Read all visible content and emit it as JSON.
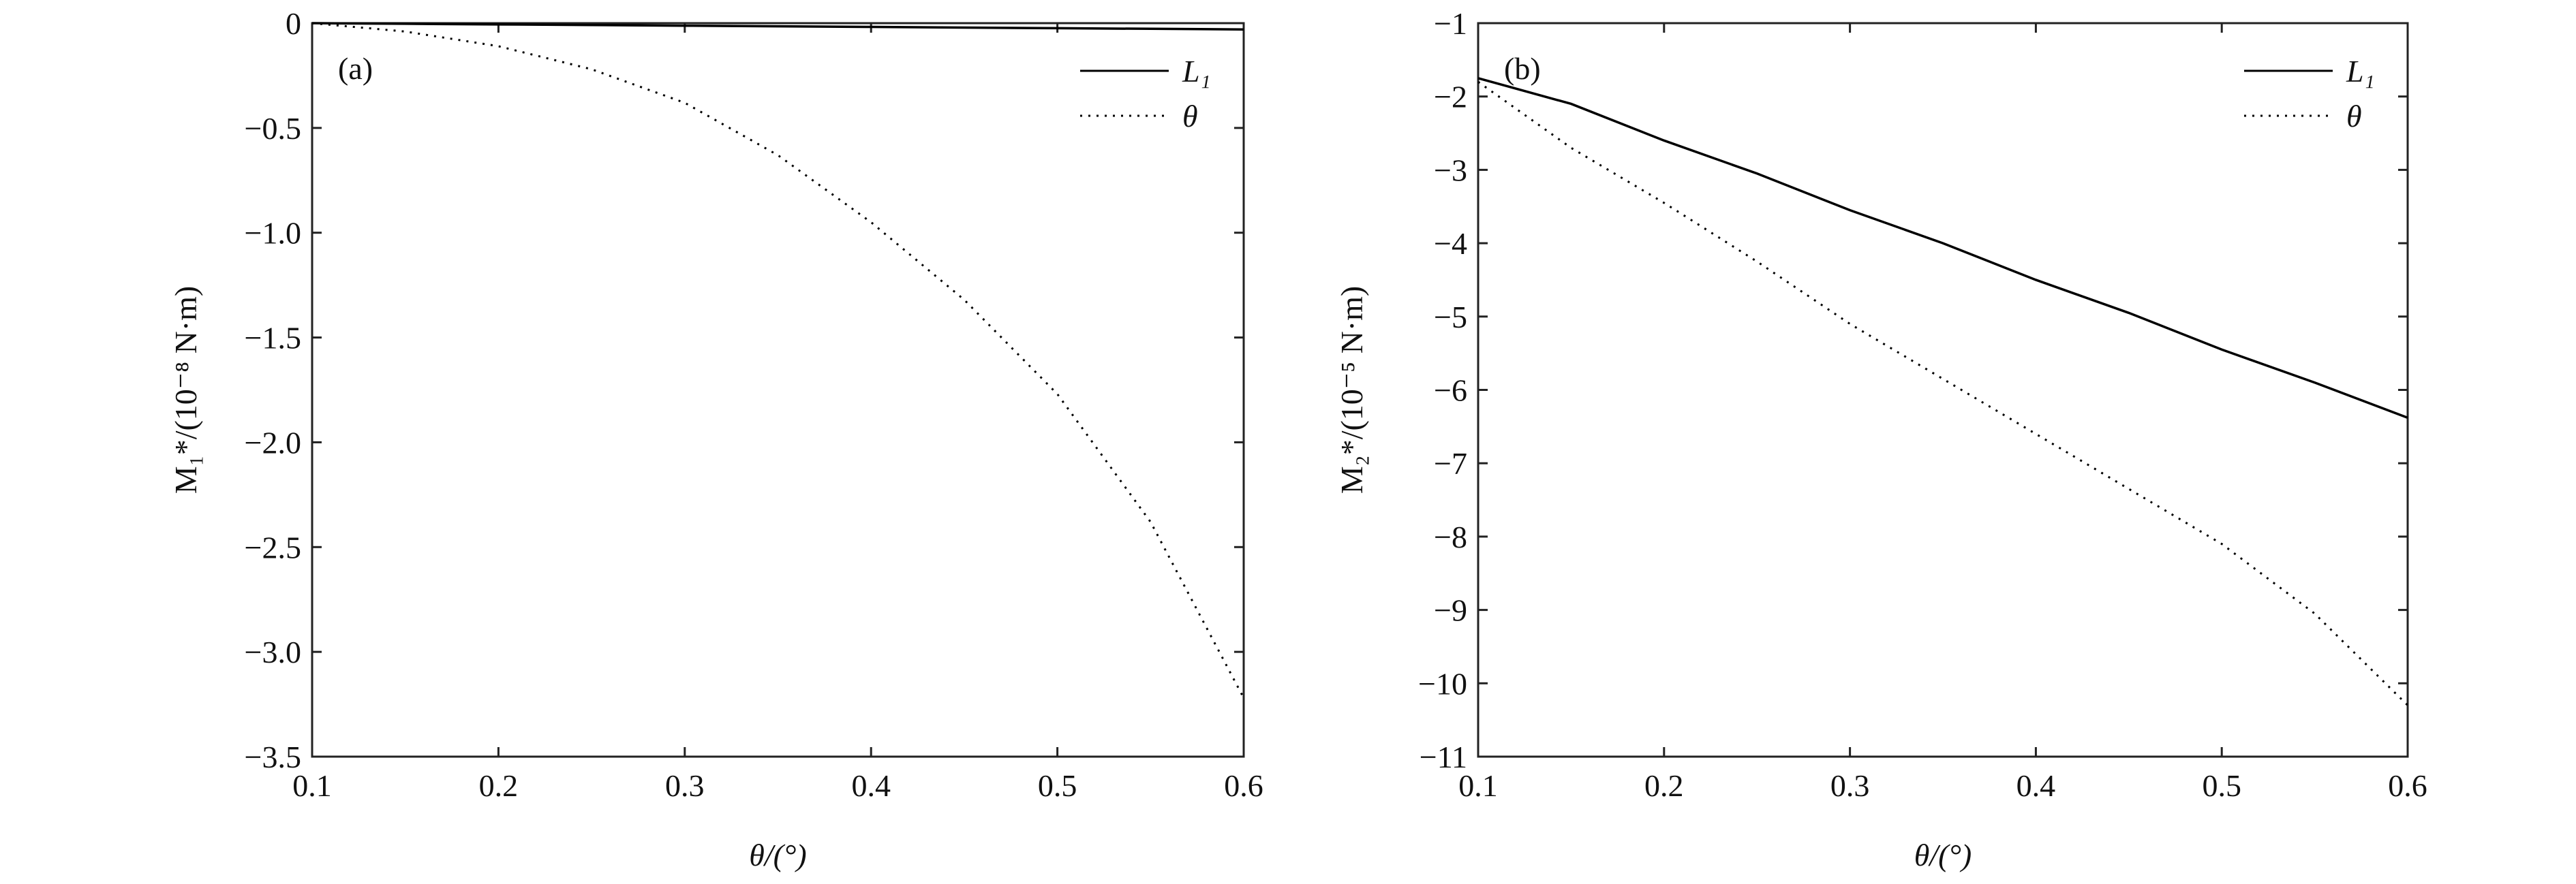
{
  "chart_data": [
    {
      "type": "line",
      "panel_label": "(a)",
      "x_label": "θ/(°)",
      "y_label": "M₁*/(10⁻⁸ N·m)",
      "x": [
        0.1,
        0.15,
        0.2,
        0.25,
        0.3,
        0.35,
        0.4,
        0.45,
        0.5,
        0.55,
        0.6
      ],
      "series": [
        {
          "name": "L₁",
          "color": "#000000",
          "line_style": "solid",
          "values": [
            0,
            -0.003,
            -0.006,
            -0.009,
            -0.012,
            -0.015,
            -0.018,
            -0.021,
            -0.024,
            -0.027,
            -0.03
          ]
        },
        {
          "name": "θ",
          "color": "#000000",
          "line_style": "dotted",
          "values": [
            0,
            -0.04,
            -0.11,
            -0.22,
            -0.38,
            -0.63,
            -0.95,
            -1.32,
            -1.77,
            -2.38,
            -3.22
          ]
        }
      ],
      "xlim": [
        0.1,
        0.6
      ],
      "xticks": [
        0.1,
        0.2,
        0.3,
        0.4,
        0.5,
        0.6
      ],
      "ylim": [
        -3.5,
        0
      ],
      "yticks": [
        0,
        {
          "value": -0.5,
          "label": "−0.5"
        },
        {
          "value": -1,
          "label": "−1.0"
        },
        {
          "value": -1.5,
          "label": "−1.5"
        },
        {
          "value": -2,
          "label": "−2.0"
        },
        {
          "value": -2.5,
          "label": "−2.5"
        },
        {
          "value": -3,
          "label": "−3.0"
        },
        {
          "value": -3.5,
          "label": "−3.5"
        }
      ],
      "legend": "upper right",
      "grid": false
    },
    {
      "type": "line",
      "panel_label": "(b)",
      "x_label": "θ/(°)",
      "y_label": "M₂*/(10⁻⁵ N·m)",
      "x": [
        0.1,
        0.15,
        0.2,
        0.25,
        0.3,
        0.35,
        0.4,
        0.45,
        0.5,
        0.55,
        0.6
      ],
      "series": [
        {
          "name": "L₁",
          "color": "#000000",
          "line_style": "solid",
          "values": [
            -1.75,
            -2.1,
            -2.6,
            -3.05,
            -3.55,
            -4.0,
            -4.5,
            -4.95,
            -5.45,
            -5.9,
            -6.38
          ]
        },
        {
          "name": "θ",
          "color": "#000000",
          "line_style": "dotted",
          "values": [
            -1.8,
            -2.7,
            -3.45,
            -4.25,
            -5.1,
            -5.85,
            -6.6,
            -7.35,
            -8.1,
            -9.05,
            -10.3
          ]
        }
      ],
      "xlim": [
        0.1,
        0.6
      ],
      "xticks": [
        0.1,
        0.2,
        0.3,
        0.4,
        0.5,
        0.6
      ],
      "ylim": [
        -11,
        -1
      ],
      "yticks": [
        {
          "value": -1,
          "label": "−1"
        },
        {
          "value": -2,
          "label": "−2"
        },
        {
          "value": -3,
          "label": "−3"
        },
        {
          "value": -4,
          "label": "−4"
        },
        {
          "value": -5,
          "label": "−5"
        },
        {
          "value": -6,
          "label": "−6"
        },
        {
          "value": -7,
          "label": "−7"
        },
        {
          "value": -8,
          "label": "−8"
        },
        {
          "value": -9,
          "label": "−9"
        },
        {
          "value": -10,
          "label": "−10"
        },
        {
          "value": -11,
          "label": "−11"
        }
      ],
      "legend": "upper right",
      "grid": false
    }
  ]
}
